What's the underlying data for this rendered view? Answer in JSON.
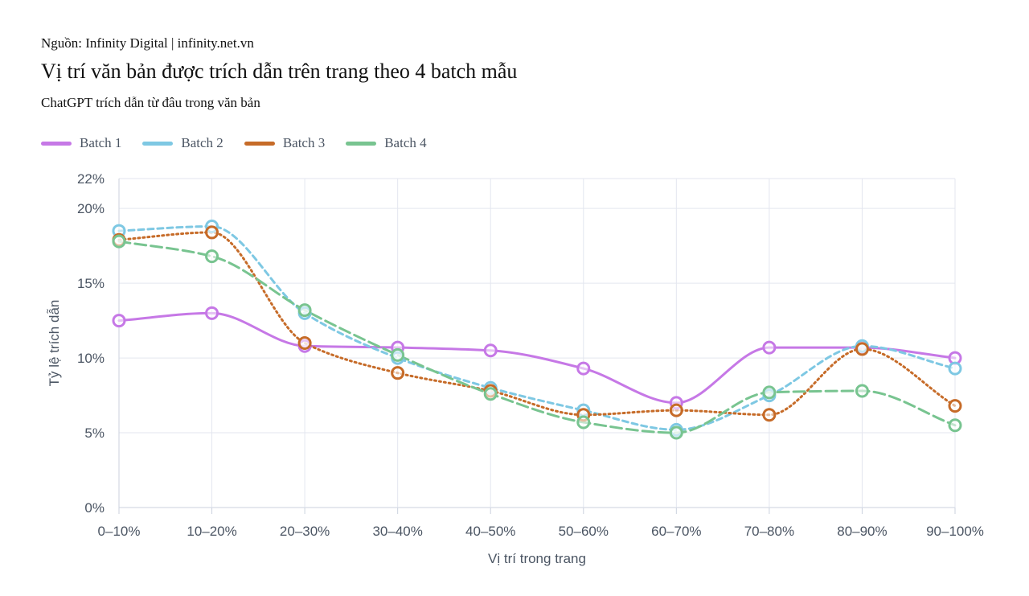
{
  "header": {
    "source": "Nguồn: Infinity Digital | infinity.net.vn",
    "title": "Vị trí văn bản được trích dẫn trên trang theo 4 batch mẫu",
    "subtitle": "ChatGPT trích dẫn từ đâu trong văn bản"
  },
  "chart_data": {
    "type": "line",
    "title": "Vị trí văn bản được trích dẫn trên trang theo 4 batch mẫu",
    "subtitle": "ChatGPT trích dẫn từ đâu trong văn bản",
    "xlabel": "Vị trí trong trang",
    "ylabel": "Tỷ lệ trích dẫn",
    "ylim": [
      0,
      22
    ],
    "yticks": [
      0,
      5,
      10,
      15,
      20,
      22
    ],
    "ytick_labels": [
      "0%",
      "5%",
      "10%",
      "15%",
      "20%",
      "22%"
    ],
    "grid": true,
    "legend_position": "top-left",
    "categories": [
      "0–10%",
      "10–20%",
      "20–30%",
      "30–40%",
      "40–50%",
      "50–60%",
      "60–70%",
      "70–80%",
      "80–90%",
      "90–100%"
    ],
    "series": [
      {
        "name": "Batch 1",
        "color": "#c678e6",
        "dash": "solid",
        "values": [
          12.5,
          13.0,
          10.8,
          10.7,
          10.5,
          9.3,
          7.0,
          10.7,
          10.7,
          10.0
        ]
      },
      {
        "name": "Batch 2",
        "color": "#7ec8e3",
        "dash": "dashed",
        "values": [
          18.5,
          18.8,
          13.0,
          10.0,
          8.0,
          6.5,
          5.2,
          7.5,
          10.8,
          9.3
        ]
      },
      {
        "name": "Batch 3",
        "color": "#c66b28",
        "dash": "dotted",
        "values": [
          17.9,
          18.4,
          11.0,
          9.0,
          7.8,
          6.2,
          6.5,
          6.2,
          10.6,
          6.8
        ]
      },
      {
        "name": "Batch 4",
        "color": "#78c490",
        "dash": "long-dashed",
        "values": [
          17.8,
          16.8,
          13.2,
          10.2,
          7.6,
          5.7,
          5.0,
          7.7,
          7.8,
          5.5
        ]
      }
    ]
  }
}
